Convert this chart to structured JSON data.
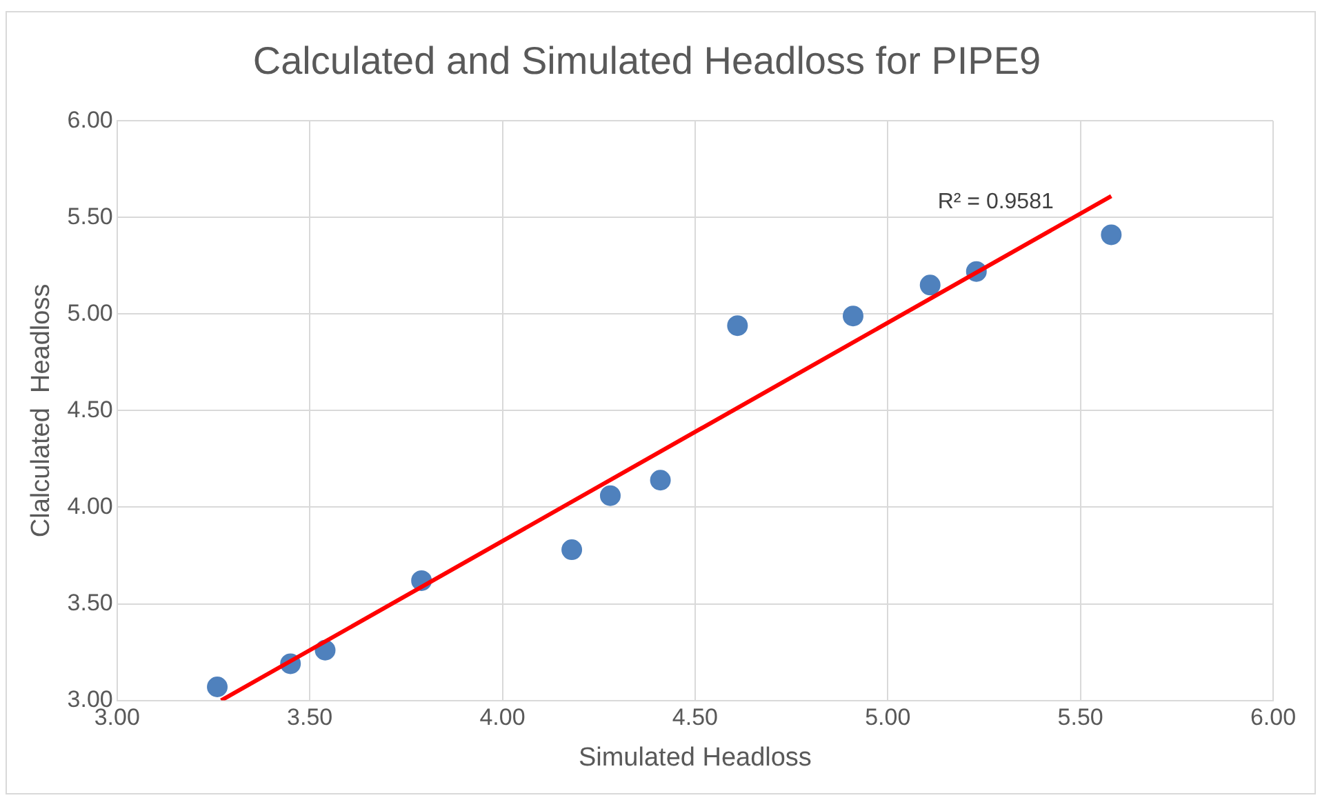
{
  "chart_data": {
    "type": "scatter",
    "title": "Calculated and Simulated Headloss for PIPE9",
    "xlabel": "Simulated Headloss",
    "ylabel": "Clalculated  Headloss",
    "xlim": [
      3,
      6
    ],
    "xticks": [
      {
        "value": 3,
        "label": "3.00"
      },
      {
        "value": 3.5,
        "label": "3.50"
      },
      {
        "value": 4,
        "label": "4.00"
      },
      {
        "value": 4.5,
        "label": "4.50"
      },
      {
        "value": 5,
        "label": "5.00"
      },
      {
        "value": 5.5,
        "label": "5.50"
      },
      {
        "value": 6,
        "label": "6.00"
      }
    ],
    "ylim": [
      3,
      6
    ],
    "yticks": [
      {
        "value": 3,
        "label": "3.00"
      },
      {
        "value": 3.5,
        "label": "3.50"
      },
      {
        "value": 4,
        "label": "4.00"
      },
      {
        "value": 4.5,
        "label": "4.50"
      },
      {
        "value": 5,
        "label": "5.00"
      },
      {
        "value": 5.5,
        "label": "5.50"
      },
      {
        "value": 6,
        "label": "6.00"
      }
    ],
    "grid": true,
    "series": [
      {
        "color": "#4f81bd",
        "marker": "circle",
        "x": [
          3.26,
          3.45,
          3.54,
          3.79,
          4.18,
          4.28,
          4.41,
          4.61,
          4.91,
          5.11,
          5.23,
          5.58
        ],
        "values": [
          3.07,
          3.19,
          3.26,
          3.62,
          3.78,
          4.06,
          4.14,
          4.94,
          4.99,
          5.15,
          5.22,
          5.41
        ]
      },
      {
        "type": "line",
        "color": "#ff0000",
        "x": [
          3.27,
          5.58
        ],
        "values": [
          3.0,
          5.61
        ]
      }
    ],
    "annotations": [
      "R² = 0.9581"
    ]
  }
}
